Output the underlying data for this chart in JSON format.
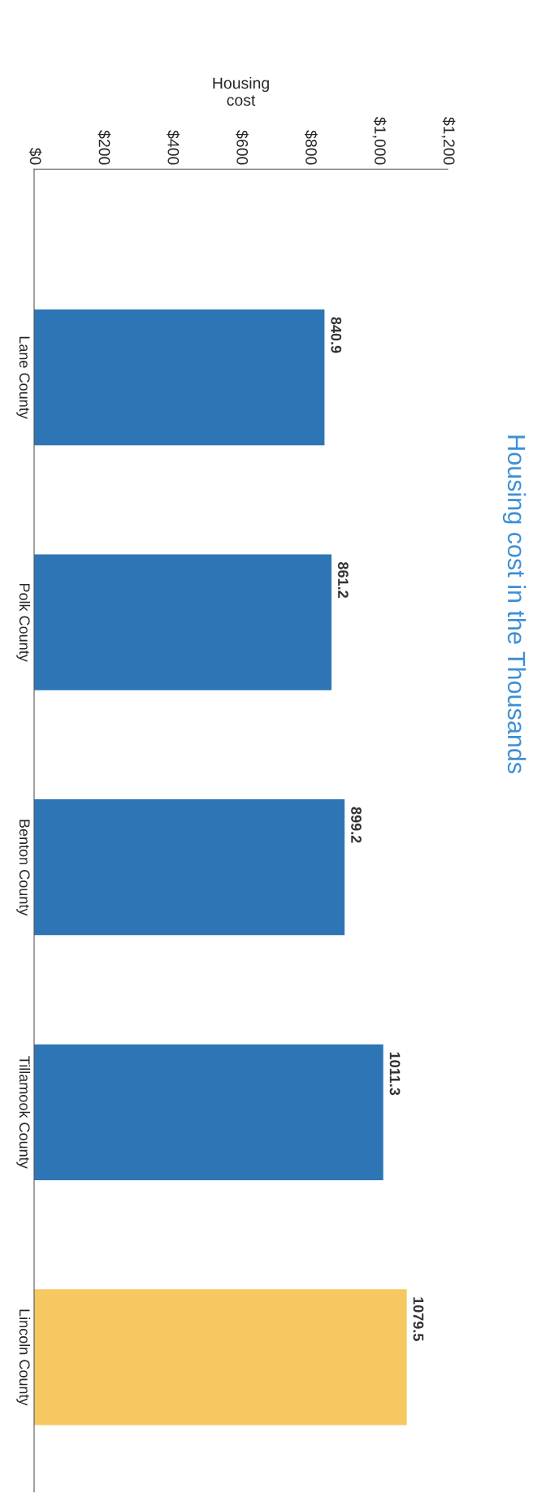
{
  "chart_data": {
    "type": "bar",
    "orientation": "horizontal",
    "title": "Housing cost in the Thousands",
    "xlabel": "Housing\ncost",
    "categories": [
      "Lane County",
      "Polk County",
      "Benton County",
      "Tillamook County",
      "Lincoln County"
    ],
    "values": [
      840.9,
      861.2,
      899.2,
      1011.3,
      1079.5
    ],
    "colors": [
      "#2e75b6",
      "#2e75b6",
      "#2e75b6",
      "#2e75b6",
      "#f5c862"
    ],
    "xlim": [
      0,
      1200
    ],
    "xticks": [
      {
        "value": 0,
        "label": "$0"
      },
      {
        "value": 200,
        "label": "$200"
      },
      {
        "value": 400,
        "label": "$400"
      },
      {
        "value": 600,
        "label": "$600"
      },
      {
        "value": 800,
        "label": "$800"
      },
      {
        "value": 1000,
        "label": "$1,000"
      },
      {
        "value": 1200,
        "label": "$1,200"
      }
    ],
    "data_labels": true,
    "grid": false
  }
}
